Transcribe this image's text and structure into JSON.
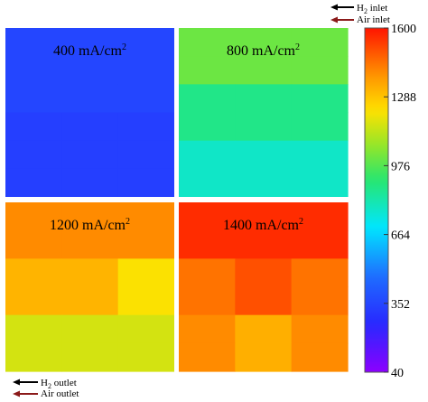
{
  "chart_data": {
    "type": "heatmap",
    "panels": [
      {
        "label": "400 mA/cm",
        "label_sup": "2",
        "grid": [
          [
            352,
            352,
            352
          ],
          [
            352,
            352,
            352
          ],
          [
            352,
            352,
            352
          ],
          [
            330,
            330,
            330
          ],
          [
            330,
            330,
            330
          ],
          [
            330,
            330,
            330
          ]
        ]
      },
      {
        "label": "800 mA/cm",
        "label_sup": "2",
        "grid": [
          [
            1010,
            1010,
            1010
          ],
          [
            1010,
            1010,
            1010
          ],
          [
            875,
            875,
            875
          ],
          [
            875,
            875,
            875
          ],
          [
            780,
            780,
            780
          ],
          [
            780,
            780,
            780
          ]
        ]
      },
      {
        "label": "1200 mA/cm",
        "label_sup": "2",
        "grid": [
          [
            1400,
            1400,
            1400
          ],
          [
            1400,
            1400,
            1400
          ],
          [
            1320,
            1320,
            1220
          ],
          [
            1320,
            1320,
            1220
          ],
          [
            1160,
            1160,
            1160
          ],
          [
            1160,
            1160,
            1160
          ]
        ]
      },
      {
        "label": "1400 mA/cm",
        "label_sup": "2",
        "grid": [
          [
            1560,
            1560,
            1560
          ],
          [
            1560,
            1560,
            1560
          ],
          [
            1440,
            1500,
            1440
          ],
          [
            1440,
            1500,
            1440
          ],
          [
            1400,
            1330,
            1400
          ],
          [
            1400,
            1330,
            1400
          ]
        ]
      }
    ],
    "colorbar": {
      "min": 40,
      "max": 1600,
      "ticks": [
        "1600",
        "1288",
        "976",
        "664",
        "352",
        "40"
      ]
    }
  },
  "legend": {
    "h2_inlet": {
      "prefix": "H",
      "sub": "2",
      "suffix": " inlet"
    },
    "air_inlet": "Air inlet",
    "h2_outlet": {
      "prefix": "H",
      "sub": "2",
      "suffix": " outlet"
    },
    "air_outlet": "Air outlet"
  },
  "colors": {
    "h2_arrow": "#000000",
    "air_arrow": "#8b1a1a",
    "panel_border": "#ffffff"
  }
}
